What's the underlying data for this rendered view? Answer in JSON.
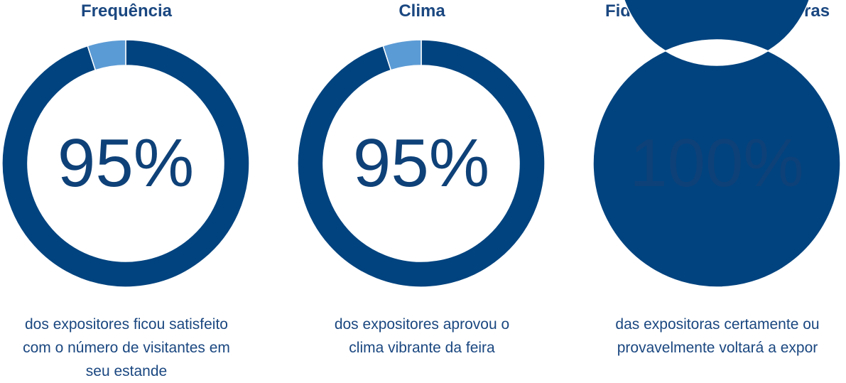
{
  "chart_data": [
    {
      "type": "pie",
      "title": "Frequência",
      "slices": [
        {
          "value": 95,
          "color": "#00437f"
        },
        {
          "value": 5,
          "color": "#5b9bd5"
        }
      ],
      "center_label": "95%",
      "caption": "dos expositores ficou satisfeito com o número de visitantes em seu estande"
    },
    {
      "type": "pie",
      "title": "Clima",
      "slices": [
        {
          "value": 95,
          "color": "#00437f"
        },
        {
          "value": 5,
          "color": "#5b9bd5"
        }
      ],
      "center_label": "95%",
      "caption": "dos expositores aprovou o clima vibrante da feira"
    },
    {
      "type": "pie",
      "title": "Fidelidade  das expositoras",
      "slices": [
        {
          "value": 100,
          "color": "#00437f"
        }
      ],
      "center_label": "100%",
      "caption": "das expositoras certamente ou provavelmente voltará a expor"
    }
  ]
}
